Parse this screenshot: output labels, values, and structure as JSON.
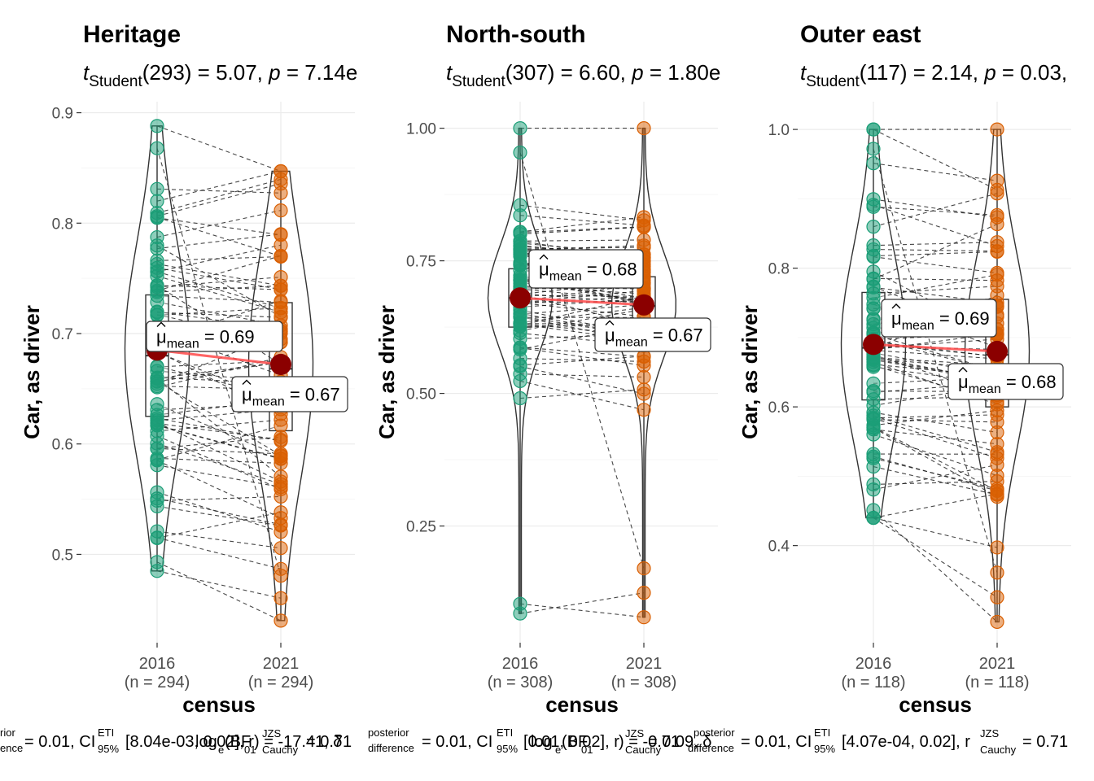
{
  "chart_data": [
    {
      "type": "violin-box-paired",
      "title": "Heritage",
      "subtitle": {
        "stat": "t",
        "stat_sub": "Student",
        "df": "(293)",
        "value": "5.07",
        "p_label": "p",
        "p_value": "7.14e"
      },
      "xlabel": "census",
      "ylabel": "Car, as driver",
      "categories": [
        "2016",
        "2021"
      ],
      "counts": [
        "(n = 294)",
        "(n = 294)"
      ],
      "ylim": [
        0.42,
        0.91
      ],
      "yticks": [
        0.5,
        0.6,
        0.7,
        0.8,
        0.9
      ],
      "yticklabels": [
        "0.5",
        "0.6",
        "0.7",
        "0.8",
        "0.9"
      ],
      "means": [
        0.685,
        0.672
      ],
      "mean_labels": [
        "0.69",
        "0.67"
      ],
      "box": [
        {
          "q1": 0.625,
          "median": 0.68,
          "q3": 0.735
        },
        {
          "q1": 0.612,
          "median": 0.668,
          "q3": 0.728
        }
      ],
      "range": [
        [
          0.485,
          0.888
        ],
        [
          0.44,
          0.847
        ]
      ]
    },
    {
      "type": "violin-box-paired",
      "title": "North-south",
      "subtitle": {
        "stat": "t",
        "stat_sub": "Student",
        "df": "(307)",
        "value": "6.60",
        "p_label": "p",
        "p_value": "1.80e"
      },
      "xlabel": "census",
      "ylabel": "Car, as driver",
      "categories": [
        "2016",
        "2021"
      ],
      "counts": [
        "(n = 308)",
        "(n = 308)"
      ],
      "ylim": [
        0.03,
        1.05
      ],
      "yticks": [
        0.25,
        0.5,
        0.75,
        1.0
      ],
      "yticklabels": [
        "0.25",
        "0.50",
        "0.75",
        "1.00"
      ],
      "means": [
        0.68,
        0.667
      ],
      "mean_labels": [
        "0.68",
        "0.67"
      ],
      "box": [
        {
          "q1": 0.625,
          "median": 0.68,
          "q3": 0.735
        },
        {
          "q1": 0.61,
          "median": 0.665,
          "q3": 0.72
        }
      ],
      "range": [
        [
          0.085,
          1.0
        ],
        [
          0.078,
          1.0
        ]
      ]
    },
    {
      "type": "violin-box-paired",
      "title": "Outer east",
      "subtitle": {
        "stat": "t",
        "stat_sub": "Student",
        "df": "(117)",
        "value": "2.14",
        "p_label": "p",
        "p_value": "0.03,"
      },
      "xlabel": "census",
      "ylabel": "Car, as driver",
      "categories": [
        "2016",
        "2021"
      ],
      "counts": [
        "(n = 118)",
        "(n = 118)"
      ],
      "ylim": [
        0.26,
        1.04
      ],
      "yticks": [
        0.4,
        0.6,
        0.8,
        1.0
      ],
      "yticklabels": [
        "0.4",
        "0.6",
        "0.8",
        "1.0"
      ],
      "means": [
        0.69,
        0.68
      ],
      "mean_labels": [
        "0.69",
        "0.68"
      ],
      "box": [
        {
          "q1": 0.61,
          "median": 0.685,
          "q3": 0.765
        },
        {
          "q1": 0.6,
          "median": 0.675,
          "q3": 0.755
        }
      ],
      "range": [
        [
          0.44,
          1.0
        ],
        [
          0.29,
          1.0
        ]
      ]
    }
  ],
  "caption": {
    "parts": [
      {
        "t": "rior",
        "x": 0,
        "y": 905,
        "size": 13
      },
      {
        "t": "ence",
        "x": 0,
        "y": 924,
        "size": 13
      },
      {
        "t": "= 0.01, CI",
        "x": 30,
        "y": 918,
        "size": 20
      },
      {
        "t": "ETI",
        "x": 120,
        "y": 905,
        "size": 13
      },
      {
        "t": "95%",
        "x": 120,
        "y": 925,
        "size": 13
      },
      {
        "t": "[8.04e-03, 0.02], r",
        "x": 154,
        "y": 918,
        "size": 20
      },
      {
        "t": "JZS",
        "x": 322,
        "y": 906,
        "size": 13
      },
      {
        "t": "Cauchy",
        "x": 322,
        "y": 926,
        "size": 13
      },
      {
        "t": "log",
        "x": 240,
        "y": 918,
        "size": 20
      },
      {
        "t": "e",
        "x": 268,
        "y": 926,
        "size": 13
      },
      {
        "t": "(BF",
        "x": 276,
        "y": 918,
        "size": 20
      },
      {
        "t": "01",
        "x": 300,
        "y": 926,
        "size": 13
      },
      {
        "t": ") = -17.41, δ",
        "x": 312,
        "y": 918,
        "size": 20
      },
      {
        "t": "= 0.71",
        "x": 376,
        "y": 918,
        "size": 20
      },
      {
        "t": "posterior",
        "x": 452,
        "y": 905,
        "size": 13
      },
      {
        "t": "difference",
        "x": 452,
        "y": 924,
        "size": 13
      },
      {
        "t": "= 0.01, CI",
        "x": 518,
        "y": 918,
        "size": 20
      },
      {
        "t": "ETI",
        "x": 610,
        "y": 905,
        "size": 13
      },
      {
        "t": "95%",
        "x": 610,
        "y": 925,
        "size": 13
      },
      {
        "t": "[0.01, 0.02], r",
        "x": 643,
        "y": 918,
        "size": 20
      },
      {
        "t": "log",
        "x": 652,
        "y": 918,
        "size": 20
      },
      {
        "t": "e",
        "x": 682,
        "y": 926,
        "size": 13
      },
      {
        "t": "(BF",
        "x": 690,
        "y": 918,
        "size": 20
      },
      {
        "t": "01",
        "x": 714,
        "y": 926,
        "size": 13
      },
      {
        "t": ") = -0.71",
        "x": 760,
        "y": 918,
        "size": 20
      },
      {
        "t": "JZS",
        "x": 768,
        "y": 906,
        "size": 13
      },
      {
        "t": "Cauchy",
        "x": 768,
        "y": 926,
        "size": 13
      },
      {
        "t": "= 0.09, δ",
        "x": 796,
        "y": 918,
        "size": 20
      },
      {
        "t": "posterior",
        "x": 852,
        "y": 905,
        "size": 13
      },
      {
        "t": "difference",
        "x": 845,
        "y": 924,
        "size": 13
      },
      {
        "t": "= 0.01, CI",
        "x": 910,
        "y": 918,
        "size": 20
      },
      {
        "t": "ETI",
        "x": 1000,
        "y": 905,
        "size": 13
      },
      {
        "t": "95%",
        "x": 1000,
        "y": 925,
        "size": 13
      },
      {
        "t": "[4.07e-04, 0.02], r",
        "x": 1034,
        "y": 918,
        "size": 20
      },
      {
        "t": "JZS",
        "x": 1204,
        "y": 906,
        "size": 13
      },
      {
        "t": "Cauchy",
        "x": 1204,
        "y": 926,
        "size": 13
      },
      {
        "t": "= 0.71",
        "x": 1256,
        "y": 918,
        "size": 20
      }
    ]
  },
  "colors": {
    "g2016": "#1b9e77",
    "g2021": "#d95f02",
    "mean": "#8b0000",
    "meanline": "#ff4a4a",
    "grid": "#ebebeb"
  }
}
